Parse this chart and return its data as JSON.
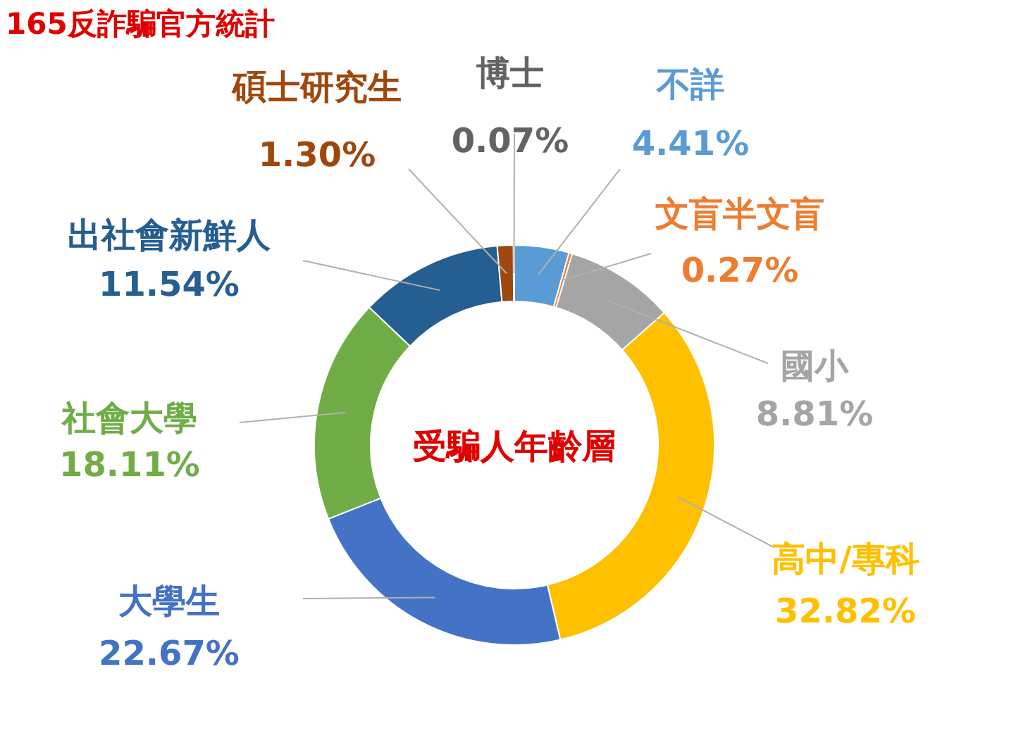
{
  "chart_data": {
    "type": "donut",
    "title": "受騙人年齡層",
    "annotations": [
      "165反詐騙官方統計"
    ],
    "categories": [
      "不詳",
      "文盲半文盲",
      "國小",
      "高中/專科",
      "大學生",
      "社會大學",
      "出社會新鮮人",
      "碩士研究生",
      "博士"
    ],
    "values": [
      4.41,
      0.27,
      8.81,
      32.82,
      22.67,
      18.11,
      11.54,
      1.3,
      0.07
    ],
    "value_labels": [
      "4.41%",
      "0.27%",
      "8.81%",
      "32.82%",
      "22.67%",
      "18.11%",
      "11.54%",
      "1.30%",
      "0.07%"
    ],
    "colors": [
      "#5b9bd5",
      "#ed7d31",
      "#a5a5a5",
      "#ffc000",
      "#4472c4",
      "#70ad47",
      "#255e91",
      "#9e480e",
      "#636363"
    ],
    "legend": false
  }
}
